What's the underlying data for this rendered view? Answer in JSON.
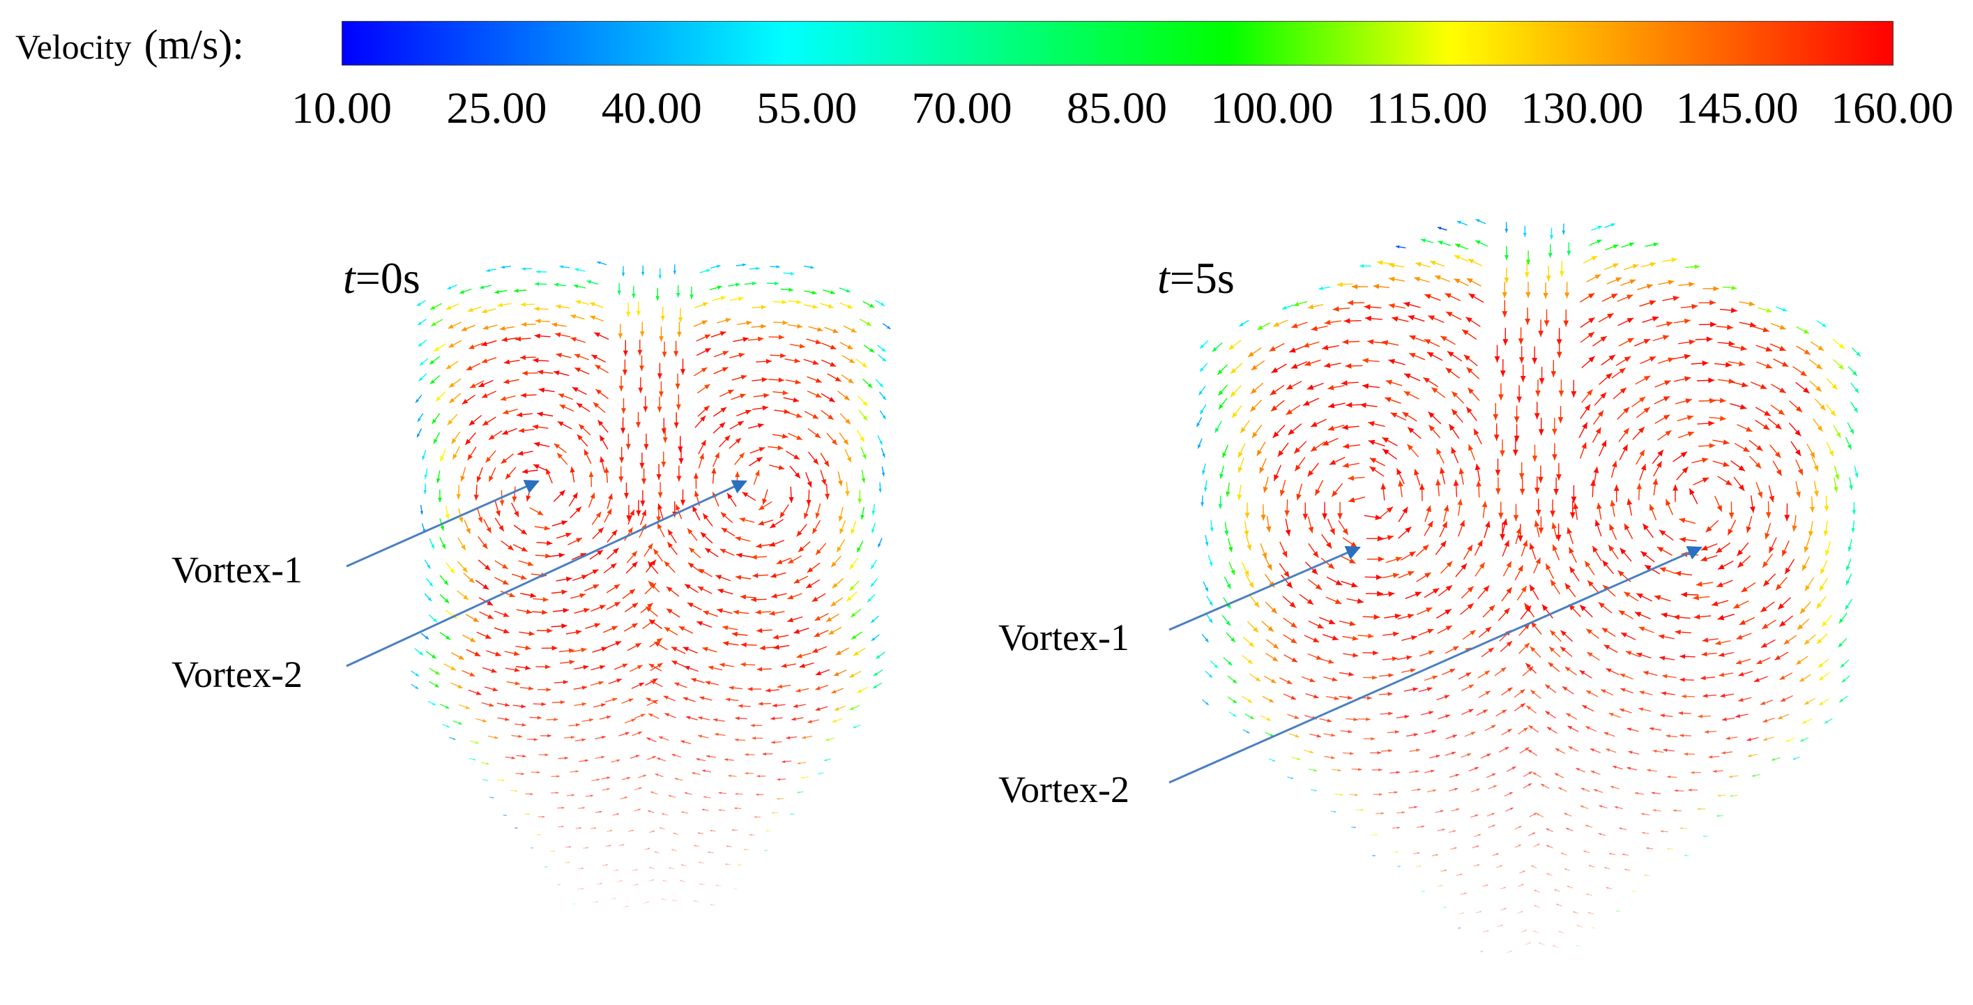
{
  "legend": {
    "title": "Velocity",
    "unit": "(m/s):",
    "ticks": [
      "10.00",
      "25.00",
      "40.00",
      "55.00",
      "70.00",
      "85.00",
      "100.00",
      "115.00",
      "130.00",
      "145.00",
      "160.00"
    ],
    "min": 10,
    "max": 160,
    "colorscale": [
      "#0000ff",
      "#0080ff",
      "#00ffff",
      "#00ff80",
      "#00ff00",
      "#ffff00",
      "#ff8000",
      "#ff0000"
    ]
  },
  "panels": [
    {
      "time_label_var": "t",
      "time_label_rest": "=0s",
      "annotations": [
        "Vortex-1",
        "Vortex-2"
      ]
    },
    {
      "time_label_var": "t",
      "time_label_rest": "=5s",
      "annotations": [
        "Vortex-1",
        "Vortex-2"
      ]
    }
  ],
  "colors": {
    "leader_line": "#4a7fc0",
    "arrow_head": "#2a6fc0"
  }
}
